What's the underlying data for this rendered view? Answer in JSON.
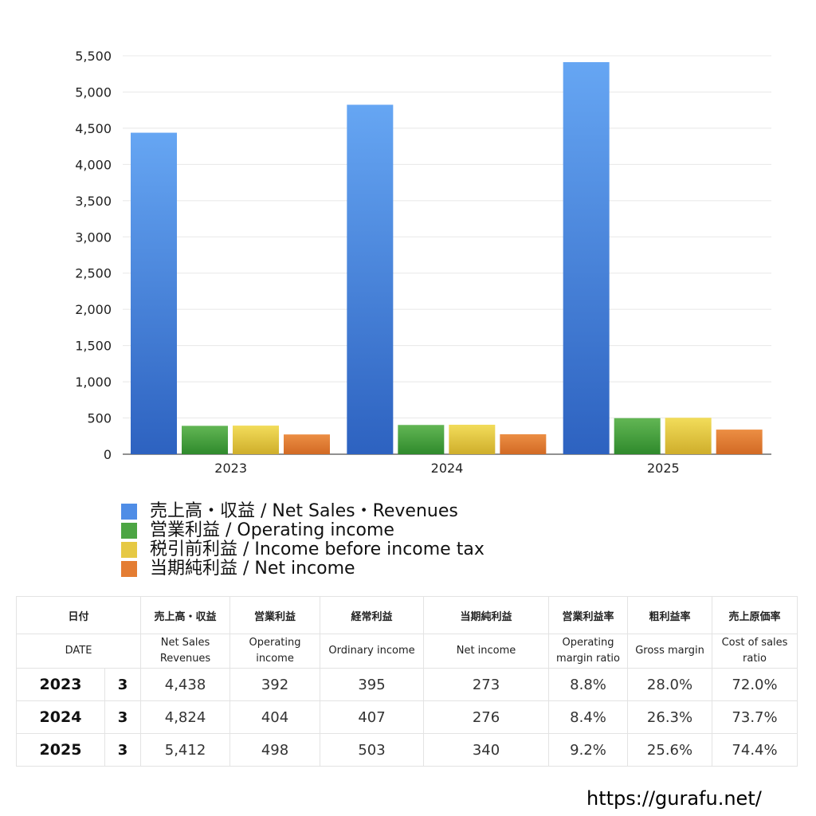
{
  "chart_data": {
    "type": "bar",
    "categories": [
      "2023",
      "2024",
      "2025"
    ],
    "series": [
      {
        "name": "売上高・収益 / Net Sales・Revenues",
        "values": [
          4438,
          4824,
          5412
        ],
        "color_top": "#66a6f3",
        "color_bottom": "#2d62c0"
      },
      {
        "name": "営業利益 / Operating income",
        "values": [
          392,
          404,
          498
        ],
        "color_top": "#62b654",
        "color_bottom": "#2f8a2c"
      },
      {
        "name": "税引前利益 / Income before income tax",
        "values": [
          395,
          407,
          503
        ],
        "color_top": "#f2dc5a",
        "color_bottom": "#cfae2b"
      },
      {
        "name": "当期純利益 / Net income",
        "values": [
          273,
          276,
          340
        ],
        "color_top": "#ec8e44",
        "color_bottom": "#d26a24"
      }
    ],
    "yticks": [
      "0",
      "500",
      "1,000",
      "1,500",
      "2,000",
      "2,500",
      "3,000",
      "3,500",
      "4,000",
      "4,500",
      "5,000",
      "5,500"
    ],
    "ylim": [
      0,
      5500
    ],
    "grid": true,
    "legend_position": "bottom"
  },
  "legend": {
    "items": [
      {
        "label": "売上高・収益 / Net Sales・Revenues",
        "color": "#4f8de6"
      },
      {
        "label": "営業利益 / Operating income",
        "color": "#4ca544"
      },
      {
        "label": "税引前利益 / Income before income tax",
        "color": "#e6c944"
      },
      {
        "label": "当期純利益 / Net income",
        "color": "#e47d33"
      }
    ]
  },
  "table": {
    "headers_jp": [
      "日付",
      "売上高・収益",
      "営業利益",
      "経常利益",
      "当期純利益",
      "営業利益率",
      "粗利益率",
      "売上原価率"
    ],
    "headers_en": [
      "DATE",
      "Net Sales\nRevenues",
      "Operating\nincome",
      "Ordinary income",
      "Net income",
      "Operating\nmargin ratio",
      "Gross margin",
      "Cost of sales\nratio"
    ],
    "rows": [
      {
        "year": "2023",
        "month": "3",
        "cells": [
          "4,438",
          "392",
          "395",
          "273",
          "8.8%",
          "28.0%",
          "72.0%"
        ]
      },
      {
        "year": "2024",
        "month": "3",
        "cells": [
          "4,824",
          "404",
          "407",
          "276",
          "8.4%",
          "26.3%",
          "73.7%"
        ]
      },
      {
        "year": "2025",
        "month": "3",
        "cells": [
          "5,412",
          "498",
          "503",
          "340",
          "9.2%",
          "25.6%",
          "74.4%"
        ]
      }
    ]
  },
  "footer": {
    "url": "https://gurafu.net/"
  }
}
